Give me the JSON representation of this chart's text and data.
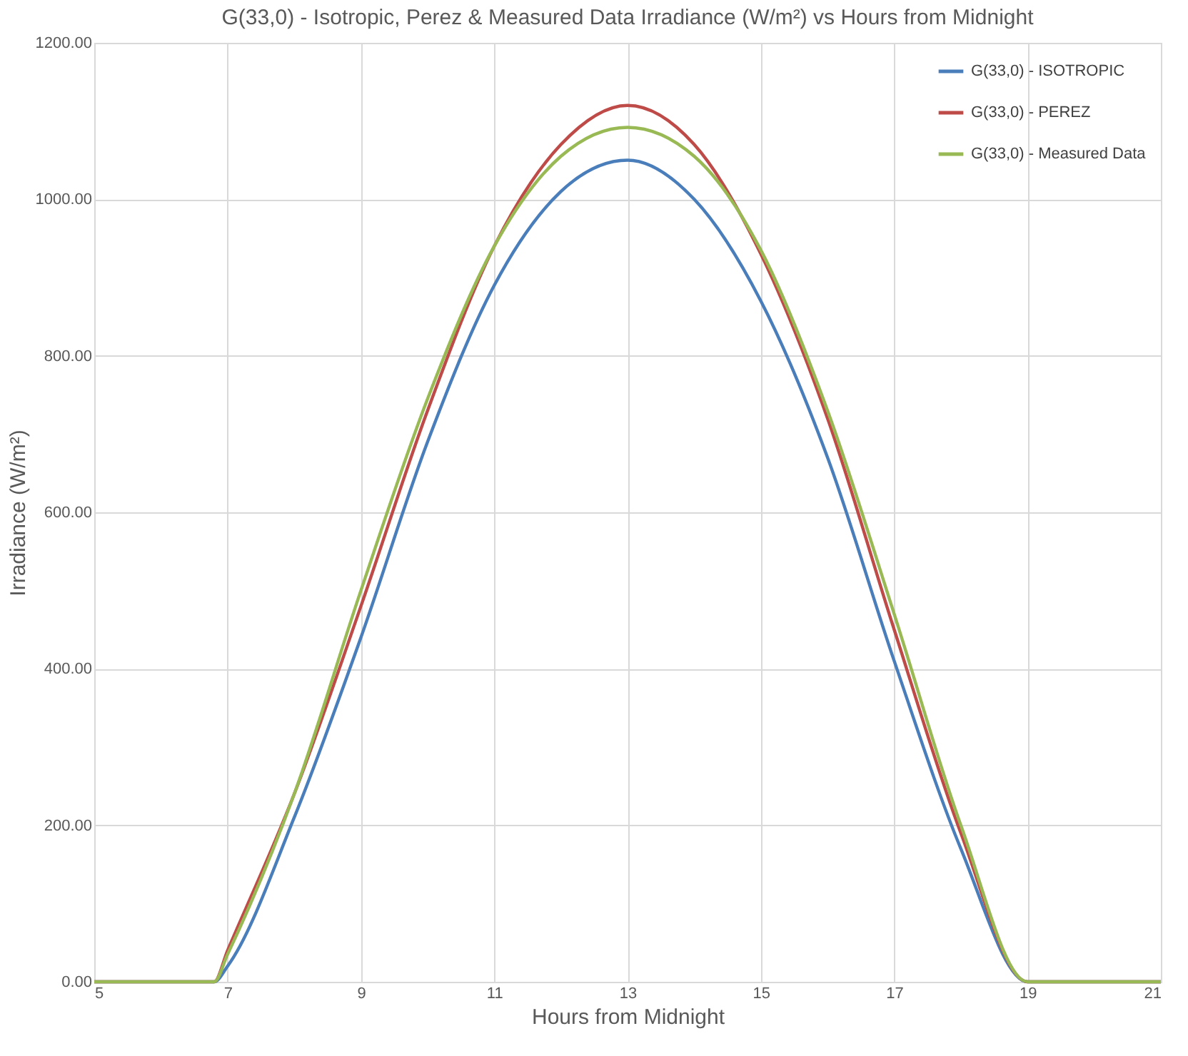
{
  "chart_data": {
    "type": "line",
    "title": "G(33,0) - Isotropic, Perez & Measured Data Irradiance (W/m²) vs Hours from Midnight",
    "xlabel": "Hours from Midnight",
    "ylabel": "Irradiance (W/m²)",
    "x": [
      5,
      6,
      6.8,
      7,
      8,
      9,
      10,
      11,
      12,
      13,
      14,
      15,
      16,
      17,
      18,
      19,
      20,
      21
    ],
    "series": [
      {
        "name": "G(33,0) - ISOTROPIC",
        "color": "#4a7ebb",
        "values": [
          0,
          0,
          0,
          20,
          210,
          440,
          690,
          890,
          1010,
          1050,
          1000,
          870,
          670,
          410,
          170,
          0,
          0,
          0
        ]
      },
      {
        "name": "G(33,0) - PEREZ",
        "color": "#be4b48",
        "values": [
          0,
          0,
          0,
          40,
          240,
          480,
          730,
          940,
          1070,
          1120,
          1070,
          930,
          720,
          450,
          190,
          0,
          0,
          0
        ]
      },
      {
        "name": "G(33,0) - Measured Data",
        "color": "#98b954",
        "values": [
          0,
          0,
          0,
          35,
          240,
          500,
          745,
          940,
          1055,
          1092,
          1055,
          935,
          730,
          470,
          200,
          0,
          0,
          0
        ]
      }
    ],
    "xlim": [
      5,
      21
    ],
    "xticks": [
      5,
      7,
      9,
      11,
      13,
      15,
      17,
      19,
      21
    ],
    "ylim": [
      0,
      1200
    ],
    "yticks": [
      {
        "value": 0,
        "label": "0.00"
      },
      {
        "value": 200,
        "label": "200.00"
      },
      {
        "value": 400,
        "label": "400.00"
      },
      {
        "value": 600,
        "label": "600.00"
      },
      {
        "value": 800,
        "label": "800.00"
      },
      {
        "value": 1000,
        "label": "1000.00"
      },
      {
        "value": 1200,
        "label": "1200.00"
      }
    ],
    "grid": true,
    "legend": "top right",
    "marker": "none",
    "line_style": "solid"
  }
}
